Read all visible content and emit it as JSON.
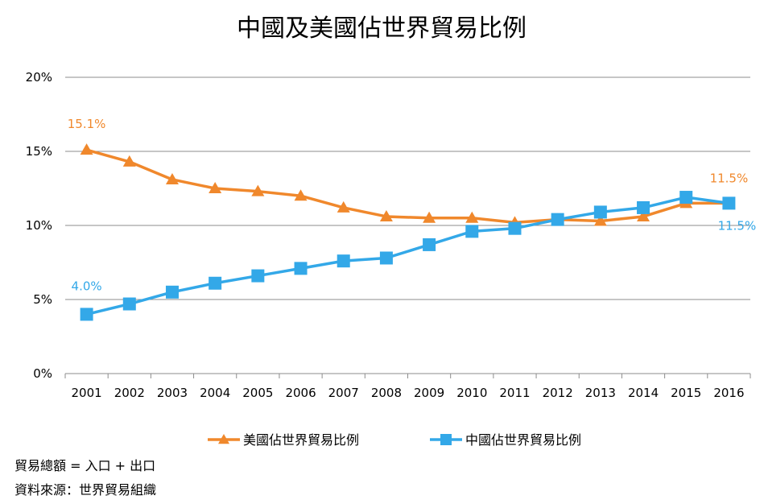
{
  "chart_data": {
    "type": "line",
    "title": "中國及美國佔世界貿易比例",
    "xlabel": "",
    "ylabel": "",
    "x": [
      "2001",
      "2002",
      "2003",
      "2004",
      "2005",
      "2006",
      "2007",
      "2008",
      "2009",
      "2010",
      "2011",
      "2012",
      "2013",
      "2014",
      "2015",
      "2016"
    ],
    "ylim": [
      0,
      20
    ],
    "yticks": [
      0,
      5,
      10,
      15,
      20
    ],
    "ytick_labels": [
      "0%",
      "5%",
      "10%",
      "15%",
      "20%"
    ],
    "grid": true,
    "legend_position": "bottom",
    "series": [
      {
        "name": "美國佔世界貿易比例",
        "color": "#f0882c",
        "marker": "triangle",
        "values": [
          15.1,
          14.3,
          13.1,
          12.5,
          12.3,
          12.0,
          11.2,
          10.6,
          10.5,
          10.5,
          10.2,
          10.4,
          10.3,
          10.6,
          11.5,
          11.5
        ],
        "first_label": "15.1%",
        "last_label": "11.5%"
      },
      {
        "name": "中國佔世界貿易比例",
        "color": "#33a8e8",
        "marker": "square",
        "values": [
          4.0,
          4.7,
          5.5,
          6.1,
          6.6,
          7.1,
          7.6,
          7.8,
          8.7,
          9.6,
          9.8,
          10.4,
          10.9,
          11.2,
          11.9,
          11.5
        ],
        "first_label": "4.0%",
        "last_label": "11.5%"
      }
    ]
  },
  "notes": [
    "貿易總額 = 入口 + 出口",
    "資料來源：世界貿易組織"
  ]
}
